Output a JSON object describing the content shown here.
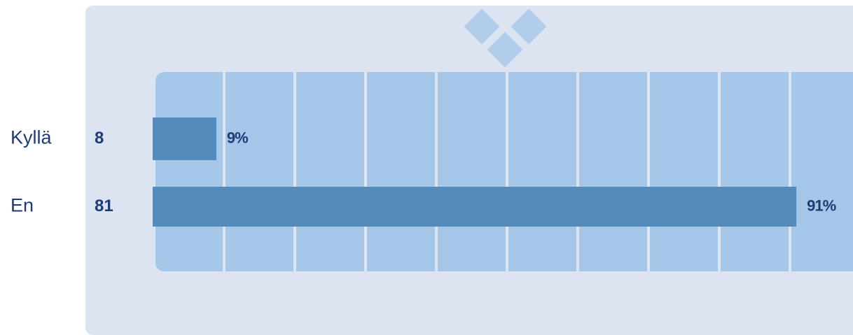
{
  "chart_data": {
    "type": "bar",
    "orientation": "horizontal",
    "categories": [
      "Kyllä",
      "En"
    ],
    "counts": [
      8,
      81
    ],
    "values": [
      9,
      91
    ],
    "value_labels": [
      "9%",
      "91%"
    ],
    "color": "#548bbd",
    "xlim": [
      0,
      100
    ],
    "grid": true
  }
}
